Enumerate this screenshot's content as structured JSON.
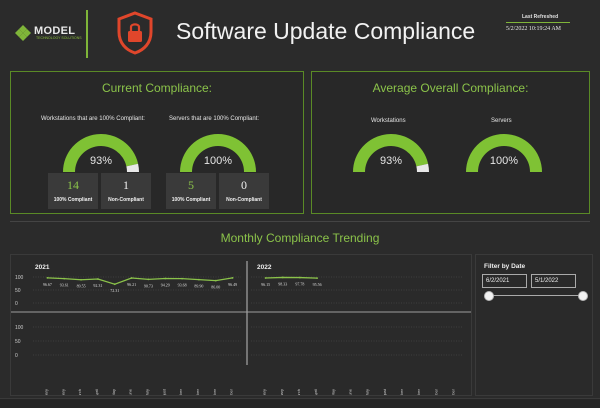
{
  "header": {
    "logo_text": "MODEL",
    "logo_subtext": "TECHNOLOGY SOLUTIONS",
    "title": "Software Update Compliance",
    "last_refreshed_label": "Last Refreshed",
    "last_refreshed_value": "5/2/2022 10:19:24 AM",
    "shield_icon": "lock-shield-icon",
    "accent_color": "#7fb539",
    "shield_color": "#e0462b"
  },
  "current": {
    "title": "Current Compliance:",
    "workstations_label": "Workstations that are 100% Compliant:",
    "servers_label": "Servers that are 100% Compliant:",
    "workstations_pct": 0.93,
    "workstations_text": "93%",
    "servers_pct": 1.0,
    "servers_text": "100%",
    "cards": [
      {
        "num": "14",
        "label": "100% Compliant",
        "color": "#8bc34a"
      },
      {
        "num": "1",
        "label": "Non-Compliant",
        "color": "#f0f0f0"
      },
      {
        "num": "5",
        "label": "100% Compliant",
        "color": "#8bc34a"
      },
      {
        "num": "0",
        "label": "Non-Compliant",
        "color": "#f0f0f0"
      }
    ]
  },
  "average": {
    "title": "Average Overall Compliance:",
    "workstations_label": "Workstations",
    "servers_label": "Servers",
    "workstations_pct": 0.93,
    "workstations_text": "93%",
    "servers_pct": 1.0,
    "servers_text": "100%"
  },
  "trend": {
    "title": "Monthly Compliance Trending"
  },
  "filter": {
    "title": "Filter by Date",
    "start": "6/2/2021",
    "end": "5/1/2022",
    "start_pos": 0.0,
    "end_pos": 1.0
  },
  "chart_data": {
    "type": "line",
    "panels": [
      {
        "year": "2021",
        "categories": [
          "January",
          "February",
          "March",
          "April",
          "May",
          "June",
          "July",
          "August",
          "September",
          "October",
          "November",
          "December"
        ],
        "values": [
          96.67,
          93.61,
          89.55,
          92.31,
          72.31,
          96.21,
          90.73,
          94.29,
          93.68,
          89.9,
          86.0,
          96.49
        ],
        "labels": [
          "96.67",
          "93.61",
          "89.55",
          "92.31",
          "72.31",
          "96.21",
          "90.73",
          "94.29",
          "93.68",
          "89.90",
          "86.00",
          "96.49"
        ]
      },
      {
        "year": "2022",
        "categories": [
          "January",
          "February",
          "March",
          "April",
          "May",
          "June",
          "July",
          "August",
          "September",
          "October",
          "November",
          "December"
        ],
        "values": [
          96.15,
          98.33,
          97.78,
          95.56,
          null,
          null,
          null,
          null,
          null,
          null,
          null,
          null
        ],
        "labels": [
          "96.15",
          "98.33",
          "97.78",
          "95.56"
        ]
      }
    ],
    "top_ticks": [
      "100",
      "50",
      "0"
    ],
    "bottom_ticks": [
      "100",
      "50",
      "0"
    ],
    "ylim": [
      0,
      100
    ],
    "line_color": "#8bc34a"
  }
}
